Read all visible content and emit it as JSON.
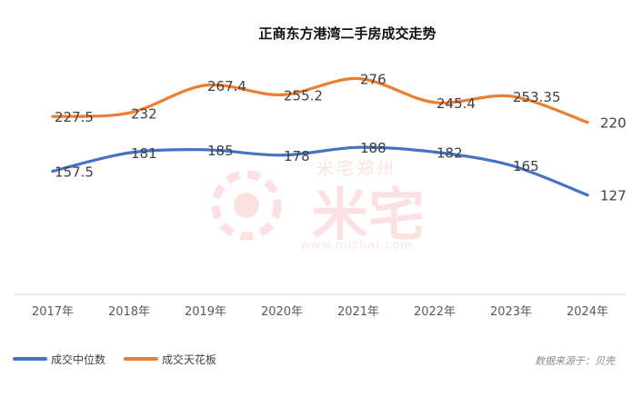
{
  "chart_data": {
    "type": "line",
    "title": "正商东方港湾二手房成交走势",
    "categories": [
      "2017年",
      "2018年",
      "2019年",
      "2020年",
      "2021年",
      "2022年",
      "2023年",
      "2024年"
    ],
    "series": [
      {
        "name": "成交中位数",
        "color": "#4472c4",
        "values": [
          157.5,
          181,
          185,
          178,
          188,
          182,
          165,
          127
        ],
        "labels": [
          "157.5",
          "181",
          "185",
          "178",
          "188",
          "182",
          "165",
          "127"
        ]
      },
      {
        "name": "成交天花板",
        "color": "#ed7d31",
        "values": [
          227.5,
          232,
          267.4,
          255.2,
          276,
          245.4,
          253.35,
          220
        ],
        "labels": [
          "227.5",
          "232",
          "267.4",
          "255.2",
          "276",
          "245.4",
          "253.35",
          "220"
        ]
      }
    ],
    "ylim": [
      0,
      330
    ],
    "grid": false,
    "legend_position": "bottom-left"
  },
  "source": "数据来源于：贝壳",
  "watermark": {
    "brand": "米宅郑州",
    "logo_text": "米宅",
    "url": "www.mizhai.com"
  }
}
